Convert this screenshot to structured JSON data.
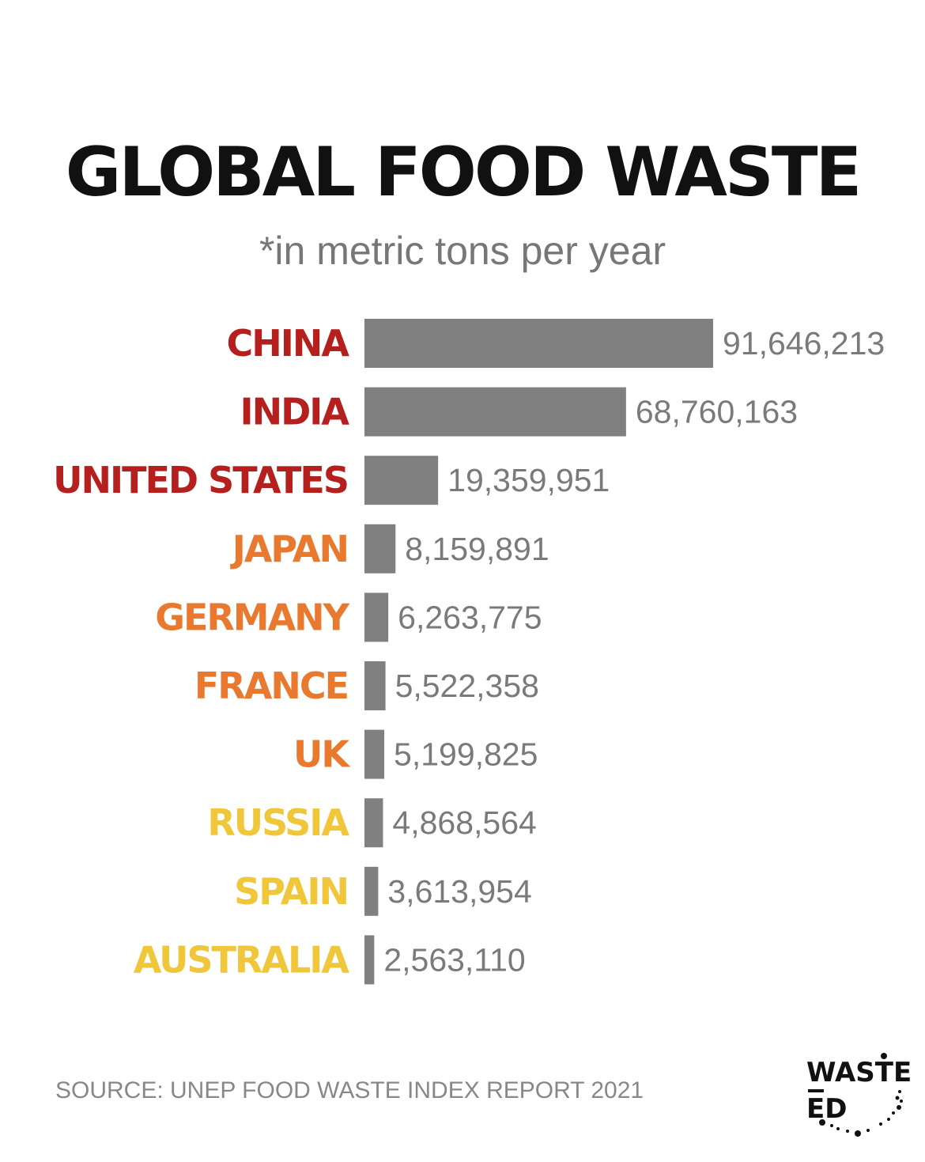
{
  "chart_data": {
    "type": "bar",
    "orientation": "horizontal",
    "title": "GLOBAL FOOD WASTE",
    "subtitle": "*in metric tons per year",
    "categories": [
      "CHINA",
      "INDIA",
      "UNITED STATES",
      "JAPAN",
      "GERMANY",
      "FRANCE",
      "UK",
      "RUSSIA",
      "SPAIN",
      "AUSTRALIA"
    ],
    "values": [
      91646213,
      68760163,
      19359951,
      8159891,
      6263775,
      5522358,
      5199825,
      4868564,
      3613954,
      2563110
    ],
    "value_labels": [
      "91,646,213",
      "68,760,163",
      "19,359,951",
      "8,159,891",
      "6,263,775",
      "5,522,358",
      "5,199,825",
      "4,868,564",
      "3,613,954",
      "2,563,110"
    ],
    "label_colors": [
      "#b5201e",
      "#b5201e",
      "#b5201e",
      "#e8792e",
      "#e8792e",
      "#e8792e",
      "#e8792e",
      "#f0c63a",
      "#f0c63a",
      "#f0c63a"
    ],
    "bar_color": "#808080",
    "grid": false,
    "xlim": [
      0,
      91646213
    ]
  },
  "footer": {
    "source": "SOURCE: UNEP FOOD WASTE INDEX REPORT 2021"
  },
  "logo": {
    "line1": "WASTE",
    "line2": "ED"
  }
}
